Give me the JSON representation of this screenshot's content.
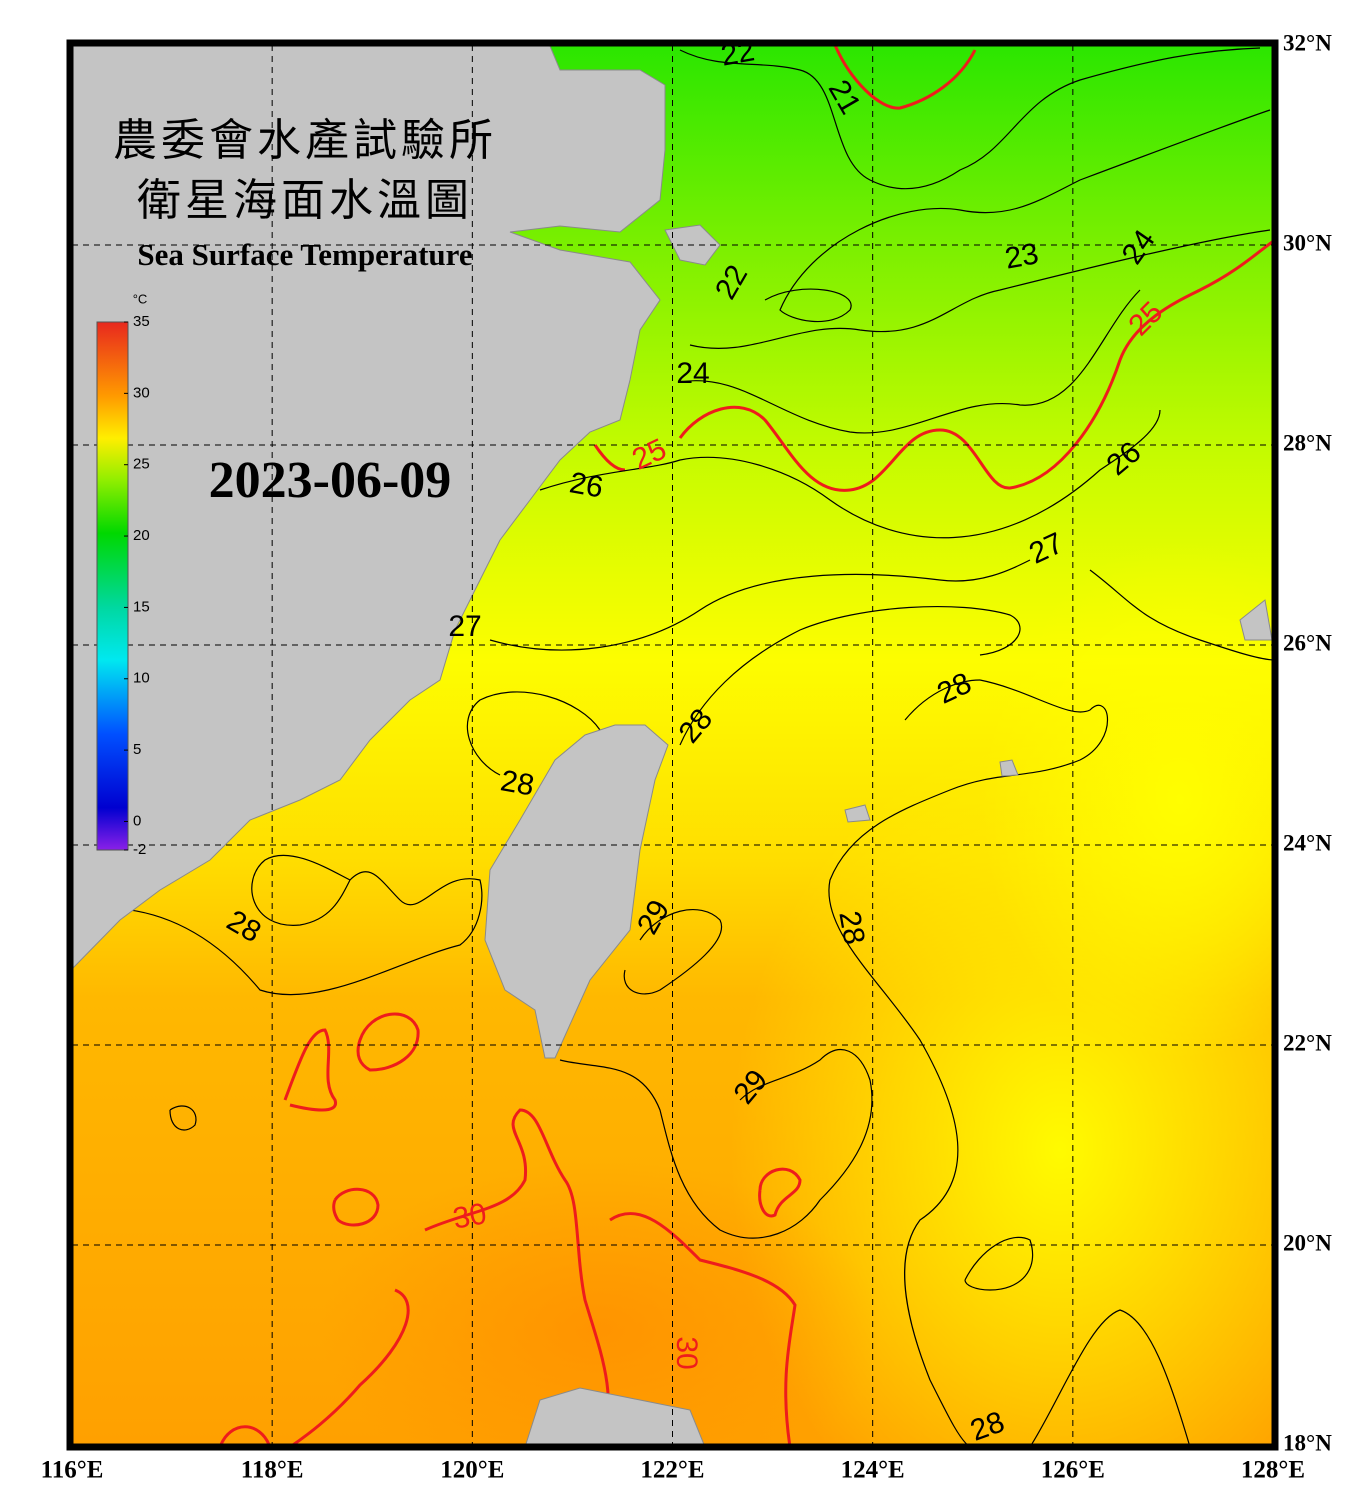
{
  "map": {
    "title_zh_1": "農委會水產試驗所",
    "title_zh_2": "衛星海面水溫圖",
    "title_en": "Sea Surface Temperature",
    "date": "2023-06-09",
    "lon_ticks": [
      {
        "value": 116,
        "label": "116°E"
      },
      {
        "value": 118,
        "label": "118°E"
      },
      {
        "value": 120,
        "label": "120°E"
      },
      {
        "value": 122,
        "label": "122°E"
      },
      {
        "value": 124,
        "label": "124°E"
      },
      {
        "value": 126,
        "label": "126°E"
      },
      {
        "value": 128,
        "label": "128°E"
      }
    ],
    "lat_ticks": [
      {
        "value": 32,
        "label": "32°N"
      },
      {
        "value": 30,
        "label": "30°N"
      },
      {
        "value": 28,
        "label": "28°N"
      },
      {
        "value": 26,
        "label": "26°N"
      },
      {
        "value": 24,
        "label": "24°N"
      },
      {
        "value": 22,
        "label": "22°N"
      },
      {
        "value": 20,
        "label": "20°N"
      },
      {
        "value": 18,
        "label": "18°N"
      }
    ],
    "lon_range": [
      116,
      128
    ],
    "lat_range": [
      18,
      32
    ],
    "grid": true,
    "colorbar": {
      "unit": "°C",
      "range": [
        -2,
        35
      ],
      "ticks": [
        35,
        30,
        25,
        20,
        15,
        10,
        5,
        0,
        -2
      ]
    },
    "contour_labels": [
      {
        "value": 22,
        "color": "#000000"
      },
      {
        "value": 21,
        "color": "#000000"
      },
      {
        "value": 23,
        "color": "#000000"
      },
      {
        "value": 24,
        "color": "#000000"
      },
      {
        "value": 22,
        "color": "#000000"
      },
      {
        "value": 24,
        "color": "#000000"
      },
      {
        "value": 25,
        "color": "#ee1c1c"
      },
      {
        "value": 25,
        "color": "#ee1c1c"
      },
      {
        "value": 26,
        "color": "#000000"
      },
      {
        "value": 26,
        "color": "#000000"
      },
      {
        "value": 27,
        "color": "#000000"
      },
      {
        "value": 27,
        "color": "#000000"
      },
      {
        "value": 28,
        "color": "#000000"
      },
      {
        "value": 28,
        "color": "#000000"
      },
      {
        "value": 28,
        "color": "#000000"
      },
      {
        "value": 28,
        "color": "#000000"
      },
      {
        "value": 29,
        "color": "#000000"
      },
      {
        "value": 29,
        "color": "#000000"
      },
      {
        "value": 28,
        "color": "#000000"
      },
      {
        "value": 30,
        "color": "#ee1c1c"
      },
      {
        "value": 30,
        "color": "#ee1c1c"
      },
      {
        "value": 28,
        "color": "#000000"
      }
    ]
  }
}
